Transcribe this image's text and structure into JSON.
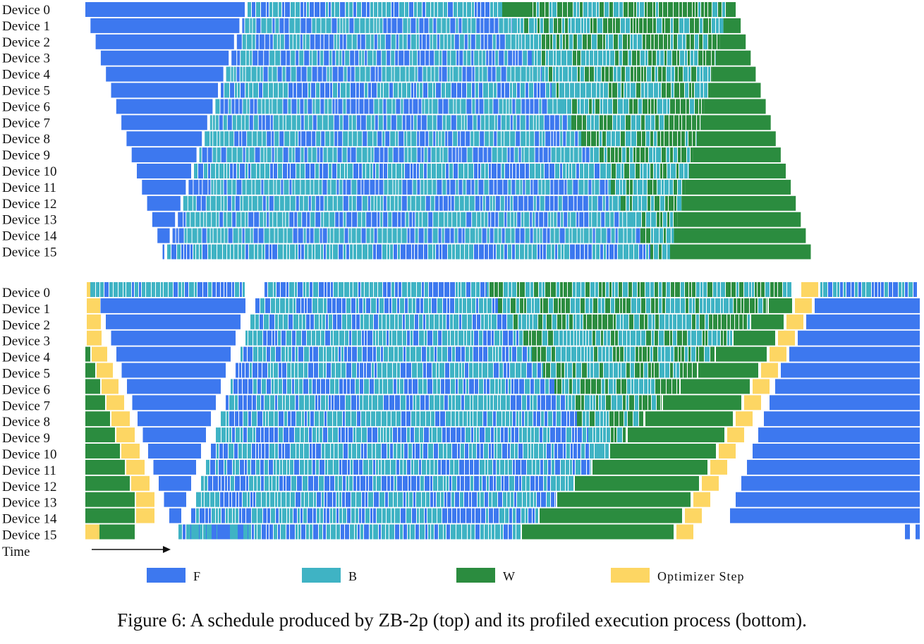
{
  "colors": {
    "F": "#3d78ef",
    "B": "#3fb3c4",
    "W": "#2b8c3f",
    "Optimizer Step": "#fdd663",
    "bubble": "#ffffff"
  },
  "top_panel": {
    "devices": [
      "Device 0",
      "Device 1",
      "Device 2",
      "Device 3",
      "Device 4",
      "Device 5",
      "Device 6",
      "Device 7",
      "Device 8",
      "Device 9",
      "Device 10",
      "Device 11",
      "Device 12",
      "Device 13",
      "Device 14",
      "Device 15"
    ]
  },
  "bottom_panel": {
    "devices": [
      "Device 0",
      "Device 1",
      "Device 2",
      "Device 3",
      "Device 4",
      "Device 5",
      "Device 6",
      "Device 7",
      "Device 8",
      "Device 9",
      "Device 10",
      "Device 11",
      "Device 12",
      "Device 13",
      "Device 14",
      "Device 15"
    ],
    "time_label": "Time"
  },
  "legend": [
    {
      "key": "F",
      "label": "F"
    },
    {
      "key": "B",
      "label": "B"
    },
    {
      "key": "W",
      "label": "W"
    },
    {
      "key": "Optimizer Step",
      "label": "Optimizer Step"
    }
  ],
  "caption": "Figure 6: A schedule produced by ZB-2p (top) and its profiled execution process (bottom)."
}
